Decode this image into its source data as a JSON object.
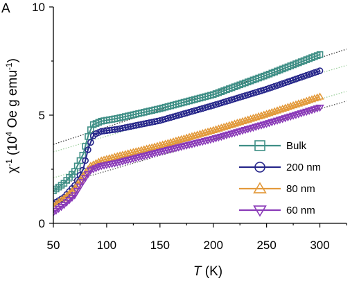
{
  "chart_data": {
    "type": "scatter",
    "panel_label": "A",
    "xlabel_italic": "T",
    "xlabel_unit": " (K)",
    "ylabel_prefix": "χ",
    "ylabel_exp": "-1",
    "ylabel_mid": " (10",
    "ylabel_exp2": "4",
    "ylabel_unit": " Oe g emu",
    "ylabel_exp3": "-1",
    "ylabel_close": ")",
    "xlim": [
      50,
      325
    ],
    "ylim": [
      0,
      10
    ],
    "xticks": [
      50,
      100,
      150,
      200,
      250,
      300
    ],
    "yticks": [
      0,
      5,
      10
    ],
    "grid": false,
    "legend_position": "lower-right",
    "series": [
      {
        "name": "Bulk",
        "color": "#3f8f86",
        "marker": "square",
        "fit_color": "#333333",
        "fit": [
          [
            50,
            3.65
          ],
          [
            325,
            8.05
          ]
        ],
        "points": [
          [
            50,
            1.5
          ],
          [
            60,
            1.85
          ],
          [
            70,
            2.4
          ],
          [
            78,
            3.2
          ],
          [
            83,
            4.1
          ],
          [
            87,
            4.55
          ],
          [
            95,
            4.72
          ],
          [
            110,
            4.85
          ],
          [
            150,
            5.3
          ],
          [
            200,
            5.95
          ],
          [
            250,
            6.85
          ],
          [
            300,
            7.8
          ]
        ]
      },
      {
        "name": "200 nm",
        "color": "#26268a",
        "marker": "circle",
        "fit_color": "#9ccf9c",
        "fit": [
          [
            50,
            3.3
          ],
          [
            325,
            7.3
          ]
        ],
        "points": [
          [
            50,
            0.9
          ],
          [
            60,
            1.2
          ],
          [
            70,
            1.75
          ],
          [
            78,
            2.5
          ],
          [
            83,
            3.5
          ],
          [
            88,
            4.1
          ],
          [
            95,
            4.25
          ],
          [
            110,
            4.35
          ],
          [
            150,
            4.75
          ],
          [
            200,
            5.45
          ],
          [
            250,
            6.2
          ],
          [
            300,
            7.05
          ]
        ]
      },
      {
        "name": "80 nm",
        "color": "#e39a3c",
        "marker": "triangle-up",
        "fit_color": "#9ccf9c",
        "fit": [
          [
            50,
            2.1
          ],
          [
            325,
            6.1
          ]
        ],
        "points": [
          [
            50,
            0.8
          ],
          [
            60,
            1.15
          ],
          [
            70,
            1.6
          ],
          [
            78,
            2.2
          ],
          [
            85,
            2.65
          ],
          [
            95,
            2.9
          ],
          [
            110,
            3.1
          ],
          [
            150,
            3.6
          ],
          [
            200,
            4.3
          ],
          [
            250,
            5.05
          ],
          [
            300,
            5.85
          ]
        ]
      },
      {
        "name": "60 nm",
        "color": "#8a3ab8",
        "marker": "triangle-down",
        "fit_color": "#555555",
        "fit": [
          [
            50,
            1.7
          ],
          [
            325,
            5.65
          ]
        ],
        "points": [
          [
            50,
            0.5
          ],
          [
            60,
            0.85
          ],
          [
            70,
            1.3
          ],
          [
            78,
            1.95
          ],
          [
            85,
            2.45
          ],
          [
            95,
            2.65
          ],
          [
            110,
            2.8
          ],
          [
            150,
            3.3
          ],
          [
            200,
            3.9
          ],
          [
            250,
            4.6
          ],
          [
            300,
            5.35
          ]
        ]
      }
    ]
  }
}
